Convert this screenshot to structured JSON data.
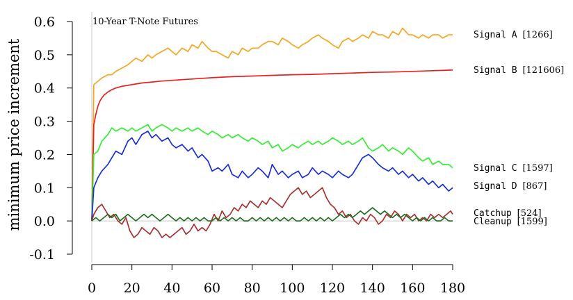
{
  "chart_data": {
    "type": "line",
    "title": "10-Year T-Note Futures",
    "xlabel": "",
    "ylabel": "minimum price increment",
    "xlim": [
      0,
      180
    ],
    "ylim": [
      -0.1,
      0.6
    ],
    "xticks": [
      0,
      20,
      40,
      60,
      80,
      100,
      120,
      140,
      160,
      180
    ],
    "yticks": [
      -0.1,
      0.0,
      0.1,
      0.2,
      0.3,
      0.4,
      0.5,
      0.6
    ],
    "ytick_labels": [
      "-0.1",
      "0.0",
      "0.1",
      "0.2",
      "0.3",
      "0.4",
      "0.5",
      "0.6"
    ],
    "grid": false,
    "reference_lines": [
      {
        "axis": "y",
        "value": 0.0,
        "color": "#c8c8c8"
      },
      {
        "axis": "x",
        "value": 0,
        "color": "#c8c8c8"
      }
    ],
    "legend": "inline labels at right end of each line",
    "series": [
      {
        "name": "Signal A",
        "count": "[1266]",
        "color": "#f5a623",
        "x": [
          0,
          1,
          3,
          5,
          8,
          10,
          12,
          15,
          18,
          20,
          22,
          25,
          28,
          30,
          32,
          35,
          38,
          40,
          42,
          45,
          48,
          50,
          53,
          55,
          58,
          60,
          62,
          65,
          68,
          70,
          73,
          75,
          78,
          80,
          83,
          85,
          88,
          90,
          93,
          95,
          98,
          100,
          103,
          105,
          108,
          110,
          113,
          115,
          118,
          120,
          123,
          125,
          128,
          130,
          133,
          135,
          138,
          140,
          143,
          145,
          148,
          150,
          153,
          155,
          158,
          160,
          163,
          165,
          168,
          170,
          173,
          175,
          178,
          180
        ],
        "y": [
          0.0,
          0.41,
          0.42,
          0.43,
          0.44,
          0.44,
          0.45,
          0.46,
          0.47,
          0.48,
          0.49,
          0.48,
          0.5,
          0.49,
          0.5,
          0.51,
          0.52,
          0.51,
          0.5,
          0.52,
          0.51,
          0.53,
          0.52,
          0.54,
          0.52,
          0.51,
          0.51,
          0.5,
          0.49,
          0.51,
          0.5,
          0.52,
          0.51,
          0.52,
          0.52,
          0.53,
          0.54,
          0.54,
          0.53,
          0.55,
          0.54,
          0.53,
          0.52,
          0.53,
          0.54,
          0.55,
          0.56,
          0.55,
          0.54,
          0.53,
          0.52,
          0.54,
          0.55,
          0.54,
          0.55,
          0.56,
          0.55,
          0.57,
          0.56,
          0.56,
          0.55,
          0.57,
          0.56,
          0.58,
          0.56,
          0.56,
          0.55,
          0.56,
          0.55,
          0.56,
          0.56,
          0.55,
          0.56,
          0.56
        ]
      },
      {
        "name": "Signal B",
        "count": "[121606]",
        "color": "#e8201e",
        "x": [
          0,
          1,
          2,
          3,
          4,
          5,
          6,
          8,
          10,
          12,
          15,
          18,
          20,
          25,
          30,
          35,
          40,
          45,
          50,
          55,
          60,
          70,
          80,
          90,
          100,
          110,
          120,
          130,
          140,
          150,
          160,
          170,
          180
        ],
        "y": [
          0.0,
          0.29,
          0.32,
          0.345,
          0.36,
          0.37,
          0.378,
          0.388,
          0.395,
          0.4,
          0.405,
          0.408,
          0.41,
          0.415,
          0.418,
          0.421,
          0.423,
          0.425,
          0.427,
          0.429,
          0.431,
          0.434,
          0.436,
          0.438,
          0.44,
          0.441,
          0.443,
          0.445,
          0.447,
          0.448,
          0.45,
          0.452,
          0.454
        ]
      },
      {
        "name": "Signal C",
        "count": "[1597]",
        "color": "#33ee33",
        "x": [
          0,
          1,
          3,
          5,
          8,
          10,
          12,
          15,
          18,
          20,
          22,
          25,
          28,
          30,
          32,
          35,
          38,
          40,
          42,
          45,
          48,
          50,
          53,
          55,
          58,
          60,
          63,
          65,
          68,
          70,
          73,
          75,
          78,
          80,
          83,
          85,
          88,
          90,
          93,
          95,
          98,
          100,
          103,
          105,
          108,
          110,
          113,
          115,
          118,
          120,
          123,
          125,
          128,
          130,
          133,
          135,
          138,
          140,
          143,
          145,
          148,
          150,
          153,
          155,
          158,
          160,
          163,
          165,
          168,
          170,
          173,
          175,
          178,
          180
        ],
        "y": [
          0.0,
          0.2,
          0.21,
          0.24,
          0.26,
          0.28,
          0.27,
          0.28,
          0.27,
          0.28,
          0.27,
          0.28,
          0.29,
          0.27,
          0.28,
          0.29,
          0.28,
          0.27,
          0.28,
          0.27,
          0.28,
          0.27,
          0.28,
          0.27,
          0.26,
          0.27,
          0.26,
          0.25,
          0.26,
          0.25,
          0.26,
          0.25,
          0.24,
          0.25,
          0.24,
          0.23,
          0.24,
          0.22,
          0.23,
          0.21,
          0.22,
          0.23,
          0.22,
          0.23,
          0.24,
          0.23,
          0.24,
          0.23,
          0.24,
          0.25,
          0.24,
          0.23,
          0.24,
          0.23,
          0.24,
          0.25,
          0.22,
          0.21,
          0.22,
          0.23,
          0.21,
          0.22,
          0.21,
          0.2,
          0.22,
          0.21,
          0.19,
          0.18,
          0.19,
          0.17,
          0.18,
          0.17,
          0.17,
          0.16
        ]
      },
      {
        "name": "Signal D",
        "count": "[867]",
        "color": "#1a2fd6",
        "x": [
          0,
          1,
          3,
          5,
          8,
          10,
          12,
          15,
          18,
          20,
          22,
          25,
          28,
          30,
          32,
          35,
          38,
          40,
          42,
          45,
          48,
          50,
          53,
          55,
          58,
          60,
          63,
          65,
          68,
          70,
          73,
          75,
          78,
          80,
          83,
          85,
          88,
          90,
          93,
          95,
          98,
          100,
          103,
          105,
          108,
          110,
          113,
          115,
          118,
          120,
          123,
          125,
          128,
          130,
          133,
          135,
          138,
          140,
          143,
          145,
          148,
          150,
          153,
          155,
          158,
          160,
          163,
          165,
          168,
          170,
          173,
          175,
          178,
          180
        ],
        "y": [
          0.0,
          0.1,
          0.13,
          0.15,
          0.17,
          0.19,
          0.21,
          0.2,
          0.24,
          0.25,
          0.23,
          0.26,
          0.27,
          0.25,
          0.26,
          0.24,
          0.25,
          0.23,
          0.22,
          0.23,
          0.21,
          0.22,
          0.19,
          0.2,
          0.18,
          0.15,
          0.16,
          0.15,
          0.17,
          0.14,
          0.13,
          0.15,
          0.13,
          0.14,
          0.16,
          0.15,
          0.13,
          0.17,
          0.14,
          0.15,
          0.13,
          0.14,
          0.15,
          0.13,
          0.14,
          0.16,
          0.14,
          0.15,
          0.14,
          0.13,
          0.15,
          0.14,
          0.13,
          0.14,
          0.17,
          0.19,
          0.2,
          0.19,
          0.17,
          0.16,
          0.15,
          0.16,
          0.14,
          0.15,
          0.13,
          0.14,
          0.12,
          0.13,
          0.11,
          0.12,
          0.1,
          0.11,
          0.09,
          0.1
        ]
      },
      {
        "name": "Catchup",
        "count": "[524]",
        "color": "#a83232",
        "x": [
          0,
          1,
          3,
          5,
          7,
          9,
          11,
          13,
          15,
          17,
          19,
          21,
          23,
          25,
          27,
          29,
          31,
          33,
          35,
          37,
          39,
          41,
          43,
          45,
          47,
          49,
          51,
          53,
          55,
          57,
          59,
          61,
          63,
          65,
          67,
          69,
          71,
          73,
          75,
          77,
          79,
          81,
          83,
          85,
          87,
          89,
          91,
          93,
          95,
          97,
          99,
          101,
          103,
          105,
          107,
          109,
          111,
          113,
          115,
          117,
          119,
          121,
          123,
          125,
          127,
          129,
          131,
          133,
          135,
          137,
          139,
          141,
          143,
          145,
          147,
          149,
          151,
          153,
          155,
          157,
          159,
          161,
          163,
          165,
          167,
          169,
          171,
          173,
          175,
          177,
          179,
          180
        ],
        "y": [
          0.0,
          0.02,
          0.04,
          0.05,
          0.03,
          0.01,
          0.02,
          0.0,
          -0.01,
          0.01,
          -0.03,
          -0.05,
          -0.04,
          -0.02,
          -0.03,
          -0.04,
          -0.02,
          -0.03,
          -0.05,
          -0.04,
          -0.05,
          -0.04,
          -0.03,
          -0.02,
          -0.04,
          -0.03,
          -0.01,
          -0.03,
          -0.02,
          -0.03,
          -0.01,
          0.02,
          0.0,
          0.03,
          0.01,
          0.02,
          0.04,
          0.03,
          0.05,
          0.04,
          0.06,
          0.05,
          0.04,
          0.06,
          0.05,
          0.07,
          0.06,
          0.05,
          0.04,
          0.06,
          0.08,
          0.09,
          0.1,
          0.08,
          0.09,
          0.07,
          0.08,
          0.09,
          0.1,
          0.07,
          0.05,
          0.04,
          0.02,
          0.03,
          0.01,
          0.02,
          0.0,
          -0.01,
          0.01,
          0.0,
          0.02,
          0.01,
          -0.01,
          0.0,
          0.02,
          0.01,
          0.03,
          0.02,
          0.0,
          0.02,
          0.01,
          0.02,
          0.0,
          0.01,
          0.0,
          0.02,
          0.01,
          0.02,
          0.01,
          0.02,
          0.03,
          0.02
        ]
      },
      {
        "name": "Cleanup",
        "count": "[1599]",
        "color": "#1f6e1f",
        "x": [
          0,
          2,
          4,
          6,
          8,
          10,
          12,
          14,
          16,
          18,
          20,
          22,
          24,
          26,
          28,
          30,
          32,
          34,
          36,
          38,
          40,
          42,
          44,
          46,
          48,
          50,
          52,
          54,
          56,
          58,
          60,
          62,
          64,
          66,
          68,
          70,
          72,
          74,
          76,
          78,
          80,
          82,
          84,
          86,
          88,
          90,
          92,
          94,
          96,
          98,
          100,
          102,
          104,
          106,
          108,
          110,
          112,
          114,
          116,
          118,
          120,
          122,
          124,
          126,
          128,
          130,
          132,
          134,
          136,
          138,
          140,
          142,
          144,
          146,
          148,
          150,
          152,
          154,
          156,
          158,
          160,
          162,
          164,
          166,
          168,
          170,
          172,
          174,
          176,
          178,
          180
        ],
        "y": [
          0.0,
          0.01,
          0.0,
          0.01,
          0.02,
          0.01,
          0.02,
          0.0,
          0.01,
          0.02,
          0.01,
          0.0,
          0.01,
          0.02,
          0.01,
          0.02,
          0.01,
          0.0,
          0.01,
          0.02,
          0.01,
          0.0,
          0.01,
          0.0,
          0.01,
          0.0,
          0.01,
          0.0,
          0.01,
          0.0,
          0.0,
          0.01,
          0.0,
          0.01,
          0.0,
          0.01,
          0.0,
          0.01,
          0.0,
          0.0,
          0.01,
          0.0,
          0.01,
          0.0,
          0.01,
          0.0,
          0.01,
          0.0,
          0.01,
          0.0,
          0.01,
          0.0,
          0.0,
          0.01,
          0.0,
          0.01,
          0.0,
          0.01,
          0.0,
          0.01,
          0.0,
          0.01,
          0.02,
          0.01,
          0.02,
          0.01,
          0.02,
          0.03,
          0.02,
          0.03,
          0.04,
          0.03,
          0.02,
          0.03,
          0.02,
          0.01,
          0.02,
          0.01,
          0.02,
          0.01,
          0.0,
          0.01,
          0.0,
          0.01,
          0.0,
          0.01,
          0.0,
          0.0,
          0.01,
          0.0,
          0.0
        ]
      }
    ]
  }
}
